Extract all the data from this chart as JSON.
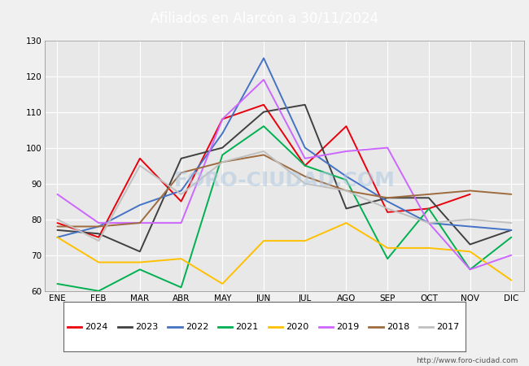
{
  "title": "Afiliados en Alarcón a 30/11/2024",
  "title_bg_color": "#4472c4",
  "title_text_color": "white",
  "ylim": [
    60,
    130
  ],
  "yticks": [
    60,
    70,
    80,
    90,
    100,
    110,
    120,
    130
  ],
  "months": [
    "ENE",
    "FEB",
    "MAR",
    "ABR",
    "MAY",
    "JUN",
    "JUL",
    "AGO",
    "SEP",
    "OCT",
    "NOV",
    "DIC"
  ],
  "watermark": "FORO-CIUDAD.COM",
  "url": "http://www.foro-ciudad.com",
  "series": {
    "2024": {
      "color": "#e8000b",
      "data": [
        79,
        75,
        97,
        85,
        108,
        112,
        95,
        106,
        82,
        83,
        87,
        null
      ]
    },
    "2023": {
      "color": "#404040",
      "data": [
        77,
        76,
        71,
        97,
        100,
        110,
        112,
        83,
        86,
        86,
        73,
        77
      ]
    },
    "2022": {
      "color": "#4472c4",
      "data": [
        75,
        78,
        84,
        88,
        104,
        125,
        100,
        92,
        85,
        79,
        78,
        77
      ]
    },
    "2021": {
      "color": "#00b050",
      "data": [
        62,
        60,
        66,
        61,
        98,
        106,
        95,
        91,
        69,
        83,
        66,
        75
      ]
    },
    "2020": {
      "color": "#ffc000",
      "data": [
        75,
        68,
        68,
        69,
        62,
        74,
        74,
        79,
        72,
        72,
        71,
        63
      ]
    },
    "2019": {
      "color": "#cc66ff",
      "data": [
        87,
        79,
        79,
        79,
        108,
        119,
        97,
        99,
        100,
        79,
        66,
        70
      ]
    },
    "2018": {
      "color": "#9e6b3e",
      "data": [
        78,
        78,
        79,
        93,
        96,
        98,
        92,
        88,
        86,
        87,
        88,
        87
      ]
    },
    "2017": {
      "color": "#c0c0c0",
      "data": [
        80,
        74,
        95,
        87,
        96,
        99,
        90,
        88,
        83,
        79,
        80,
        79
      ]
    }
  },
  "legend_order": [
    "2024",
    "2023",
    "2022",
    "2021",
    "2020",
    "2019",
    "2018",
    "2017"
  ],
  "plot_bg_color": "#e8e8e8",
  "fig_bg_color": "#f0f0f0",
  "grid_color": "#ffffff"
}
